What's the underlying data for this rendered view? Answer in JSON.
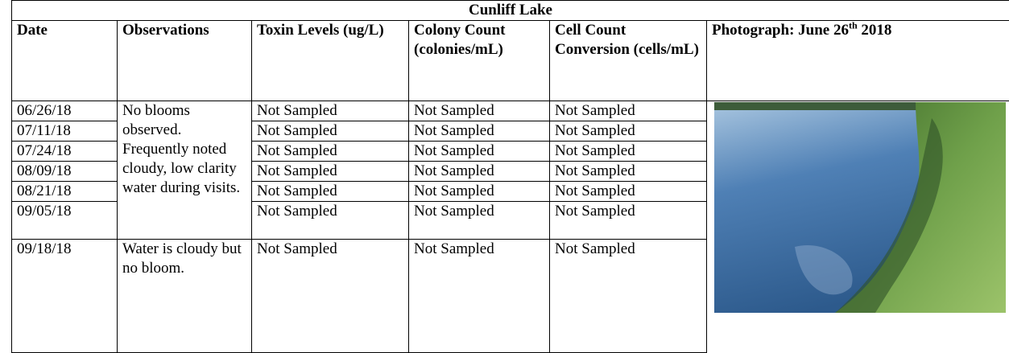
{
  "table": {
    "title": "Cunliff Lake",
    "headers": [
      "Date",
      "Observations",
      "Toxin Levels (ug/L)",
      "Colony Count (colonies/mL)",
      "Cell Count Conversion (cells/mL)"
    ],
    "photo_header": {
      "text": "Photograph: June 26",
      "sup": "th",
      "tail": " 2018"
    },
    "observations": [
      "No blooms observed. Frequently noted cloudy, low clarity water during visits.",
      "Water is cloudy but no bloom."
    ],
    "rows": [
      [
        "06/26/18",
        "Not Sampled",
        "Not Sampled",
        "Not Sampled"
      ],
      [
        "07/11/18",
        "Not Sampled",
        "Not Sampled",
        "Not Sampled"
      ],
      [
        "07/24/18",
        "Not Sampled",
        "Not Sampled",
        "Not Sampled"
      ],
      [
        "08/09/18",
        "Not Sampled",
        "Not Sampled",
        "Not Sampled"
      ],
      [
        "08/21/18",
        "Not Sampled",
        "Not Sampled",
        "Not Sampled"
      ],
      [
        "09/05/18",
        "Not Sampled",
        "Not Sampled",
        "Not Sampled"
      ],
      [
        "09/18/18",
        "Not Sampled",
        "Not Sampled",
        "Not Sampled"
      ]
    ]
  }
}
